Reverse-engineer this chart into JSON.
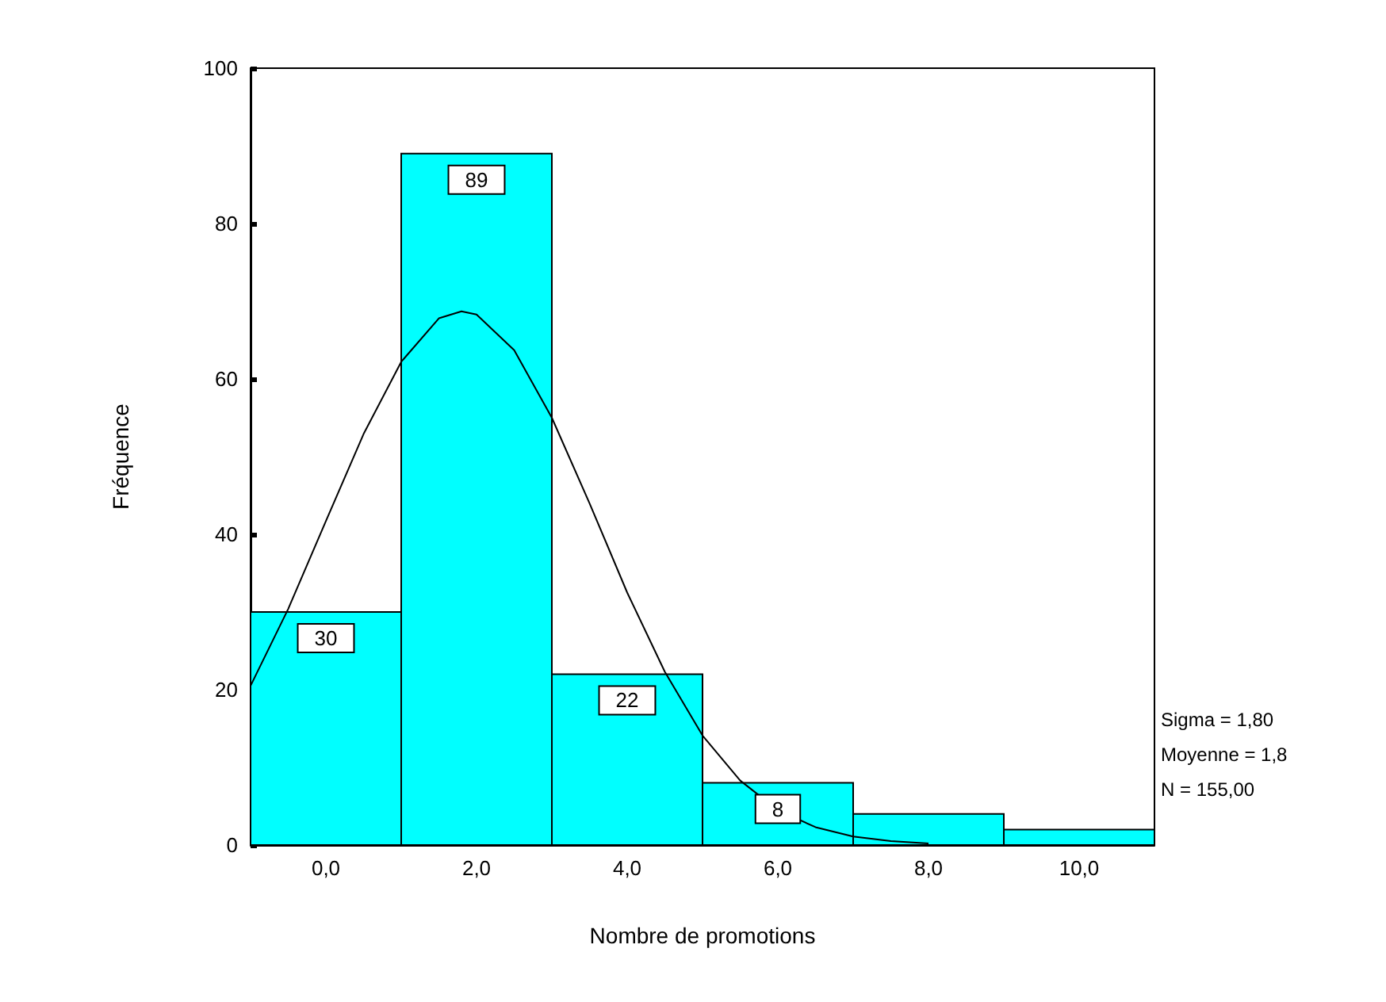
{
  "chart_data": {
    "type": "histogram",
    "xlabel": "Nombre de promotions",
    "ylabel": "Fréquence",
    "bins": [
      -1,
      1,
      3,
      5,
      7,
      9,
      11
    ],
    "series": [
      {
        "color": "#00ffff",
        "values": [
          30,
          89,
          22,
          8,
          4,
          2
        ],
        "value_labels": [
          "30",
          "89",
          "22",
          "8",
          null,
          null
        ]
      },
      {
        "type": "line",
        "color": "#000000",
        "x": [
          -1,
          -0.5,
          0,
          0.5,
          1,
          1.5,
          1.8,
          2,
          2.5,
          3,
          3.5,
          4,
          4.5,
          5,
          5.5,
          6,
          6.5,
          7,
          7.5,
          8
        ],
        "values": [
          20.5,
          30.4,
          41.7,
          52.9,
          62.2,
          67.8,
          68.7,
          68.3,
          63.7,
          55.0,
          44.0,
          32.5,
          22.3,
          14.1,
          8.3,
          4.5,
          2.3,
          1.1,
          0.5,
          0.2
        ]
      }
    ],
    "xlim": [
      -1,
      11
    ],
    "xticks": [
      {
        "value": 0,
        "label": "0,0"
      },
      {
        "value": 2,
        "label": "2,0"
      },
      {
        "value": 4,
        "label": "4,0"
      },
      {
        "value": 6,
        "label": "6,0"
      },
      {
        "value": 8,
        "label": "8,0"
      },
      {
        "value": 10,
        "label": "10,0"
      }
    ],
    "ylim": [
      0,
      100
    ],
    "yticks": [
      0,
      20,
      40,
      60,
      80,
      100
    ],
    "grid": false,
    "marker": "none",
    "line_style": "solid",
    "annotations": [
      "Sigma = 1,80",
      "Moyenne = 1,8",
      "N = 155,00"
    ]
  }
}
